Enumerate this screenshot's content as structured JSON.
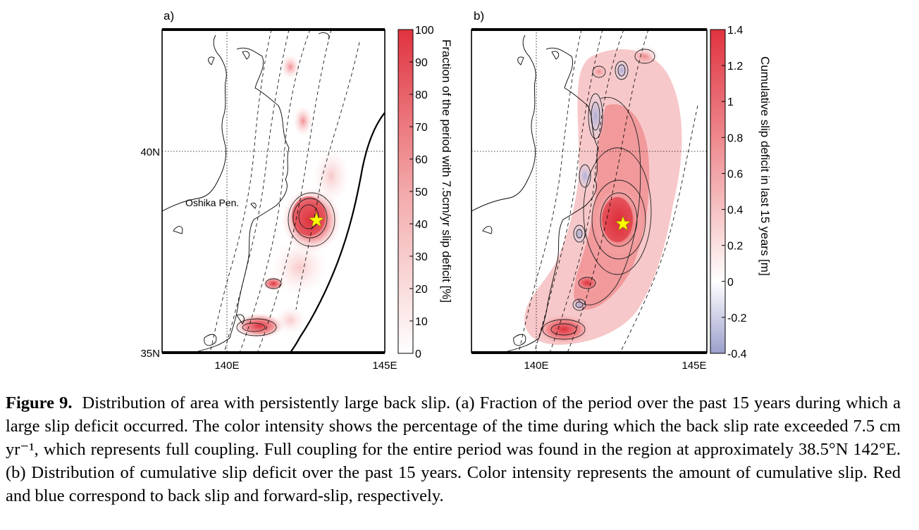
{
  "panels": [
    {
      "label": "a)",
      "lat_tick": "40N",
      "lat_tick_bottom": "35N",
      "lon_ticks": [
        "140E",
        "145E"
      ],
      "place_label": "Oshika Pen.",
      "colorbar": {
        "ticks": [
          "100",
          "90",
          "80",
          "70",
          "60",
          "50",
          "40",
          "30",
          "20",
          "10",
          "0"
        ],
        "title": "Fraction of the period with 7.5cm/yr slip deficit [%]"
      }
    },
    {
      "label": "b)",
      "lon_ticks": [
        "140E",
        "145E"
      ],
      "colorbar": {
        "ticks": [
          "1.4",
          "1.2",
          "1",
          "0.8",
          "0.6",
          "0.4",
          "0.2",
          "0",
          "-0.2",
          "-0.4"
        ],
        "title": "Cumulative slip deficit in last 15 years [m]"
      }
    }
  ],
  "colors": {
    "deficit_max": "#e0333f",
    "deficit_mid": "#ee8c8e",
    "neutral": "#ffffff",
    "forward_slip": "#b8bad8",
    "epicenter_star": "#ffff00"
  },
  "caption": {
    "label": "Figure 9.",
    "text": "Distribution of area with persistently large back slip. (a) Fraction of the period over the past 15 years during which a large slip deficit occurred. The color intensity shows the percentage of the time during which the back slip rate exceeded 7.5 cm yr⁻¹, which represents full coupling. Full coupling for the entire period was found in the region at approximately 38.5°N 142°E. (b) Distribution of cumulative slip deficit over the past 15 years. Color intensity represents the amount of cumulative slip. Red and blue correspond to back slip and forward-slip, respectively."
  }
}
